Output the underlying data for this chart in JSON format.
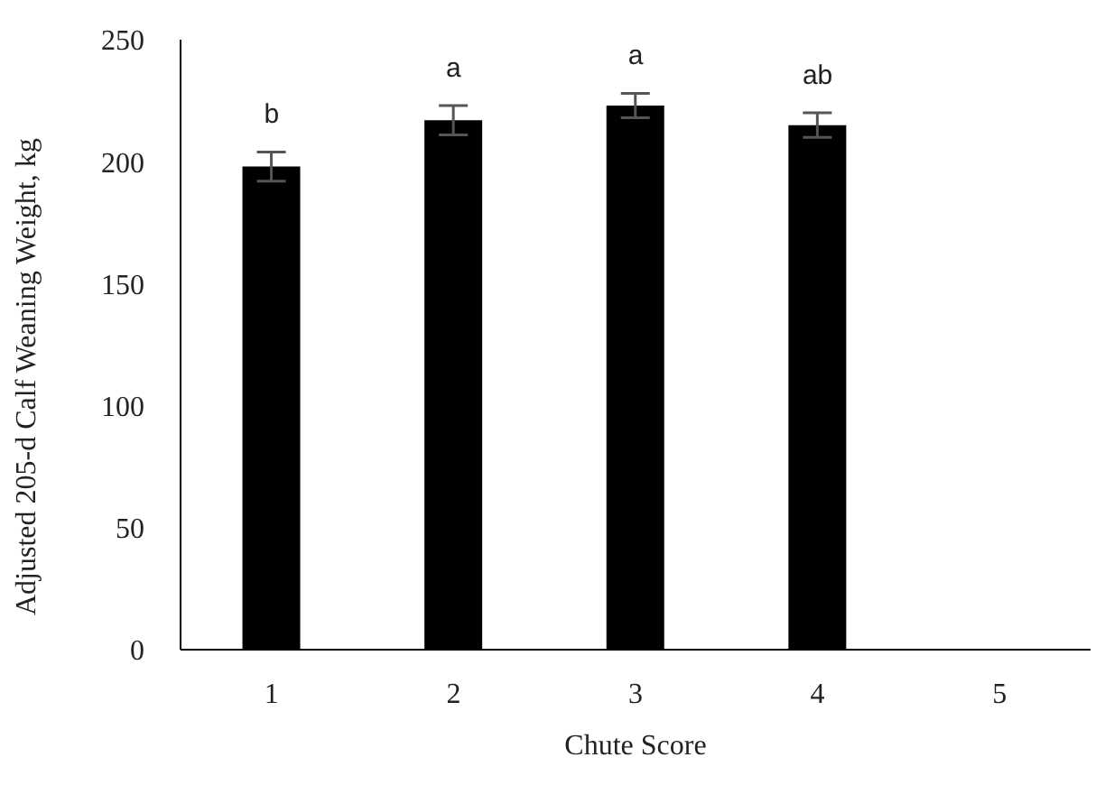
{
  "chart_data": {
    "type": "bar",
    "xlabel": "Chute Score",
    "ylabel": "Adjusted 205-d Calf Weaning Weight, kg",
    "categories": [
      "1",
      "2",
      "3",
      "4",
      "5"
    ],
    "values": [
      198,
      217,
      223,
      215,
      null
    ],
    "errors": [
      6,
      6,
      5,
      5,
      null
    ],
    "color": "#000000",
    "ylim": [
      0,
      250
    ],
    "yticks": [
      0,
      50,
      100,
      150,
      200,
      250
    ],
    "grid": false,
    "annotations": [
      "b",
      "a",
      "a",
      "ab"
    ]
  }
}
